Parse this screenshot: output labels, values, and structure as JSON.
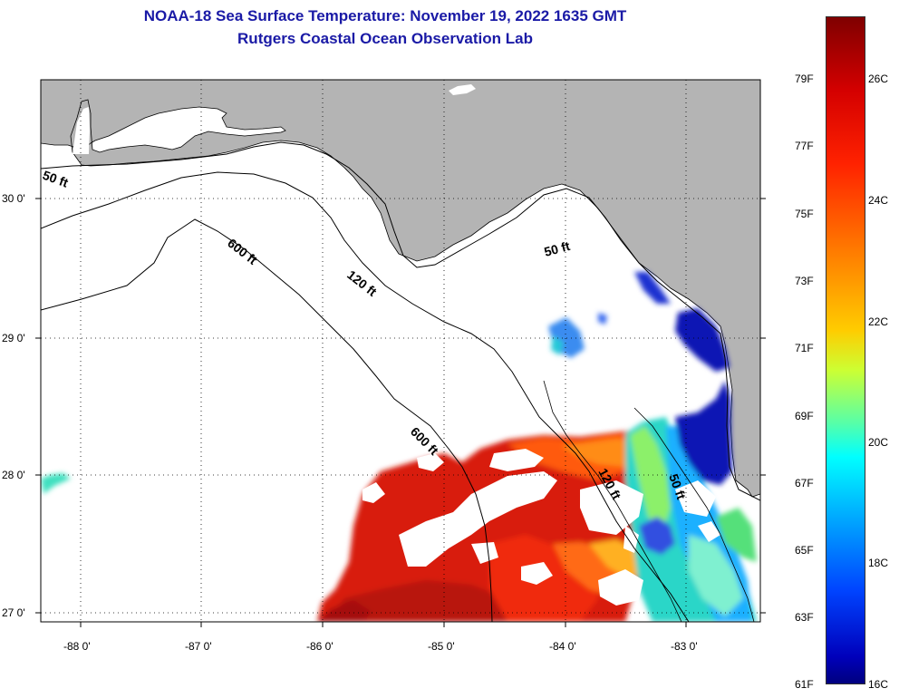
{
  "title": {
    "line1": "NOAA-18 Sea Surface Temperature:  November 19, 2022 1635 GMT",
    "line2": "Rutgers Coastal Ocean Observation Lab"
  },
  "map": {
    "x_ticks": [
      "-88 0'",
      "-87 0'",
      "-86 0'",
      "-85 0'",
      "-84 0'",
      "-83 0'"
    ],
    "y_ticks": [
      "30 0'",
      "29 0'",
      "28 0'",
      "27 0'"
    ],
    "contours": [
      "50 ft",
      "600 ft",
      "120 ft",
      "50 ft",
      "600 ft",
      "120 ft",
      "50 ft"
    ],
    "land_color": "#b4b4b4"
  },
  "colorbar": {
    "fahrenheit": [
      "79F",
      "77F",
      "75F",
      "73F",
      "71F",
      "69F",
      "67F",
      "65F",
      "63F",
      "61F"
    ],
    "celsius": [
      "26C",
      "24C",
      "22C",
      "20C",
      "18C",
      "16C"
    ]
  }
}
